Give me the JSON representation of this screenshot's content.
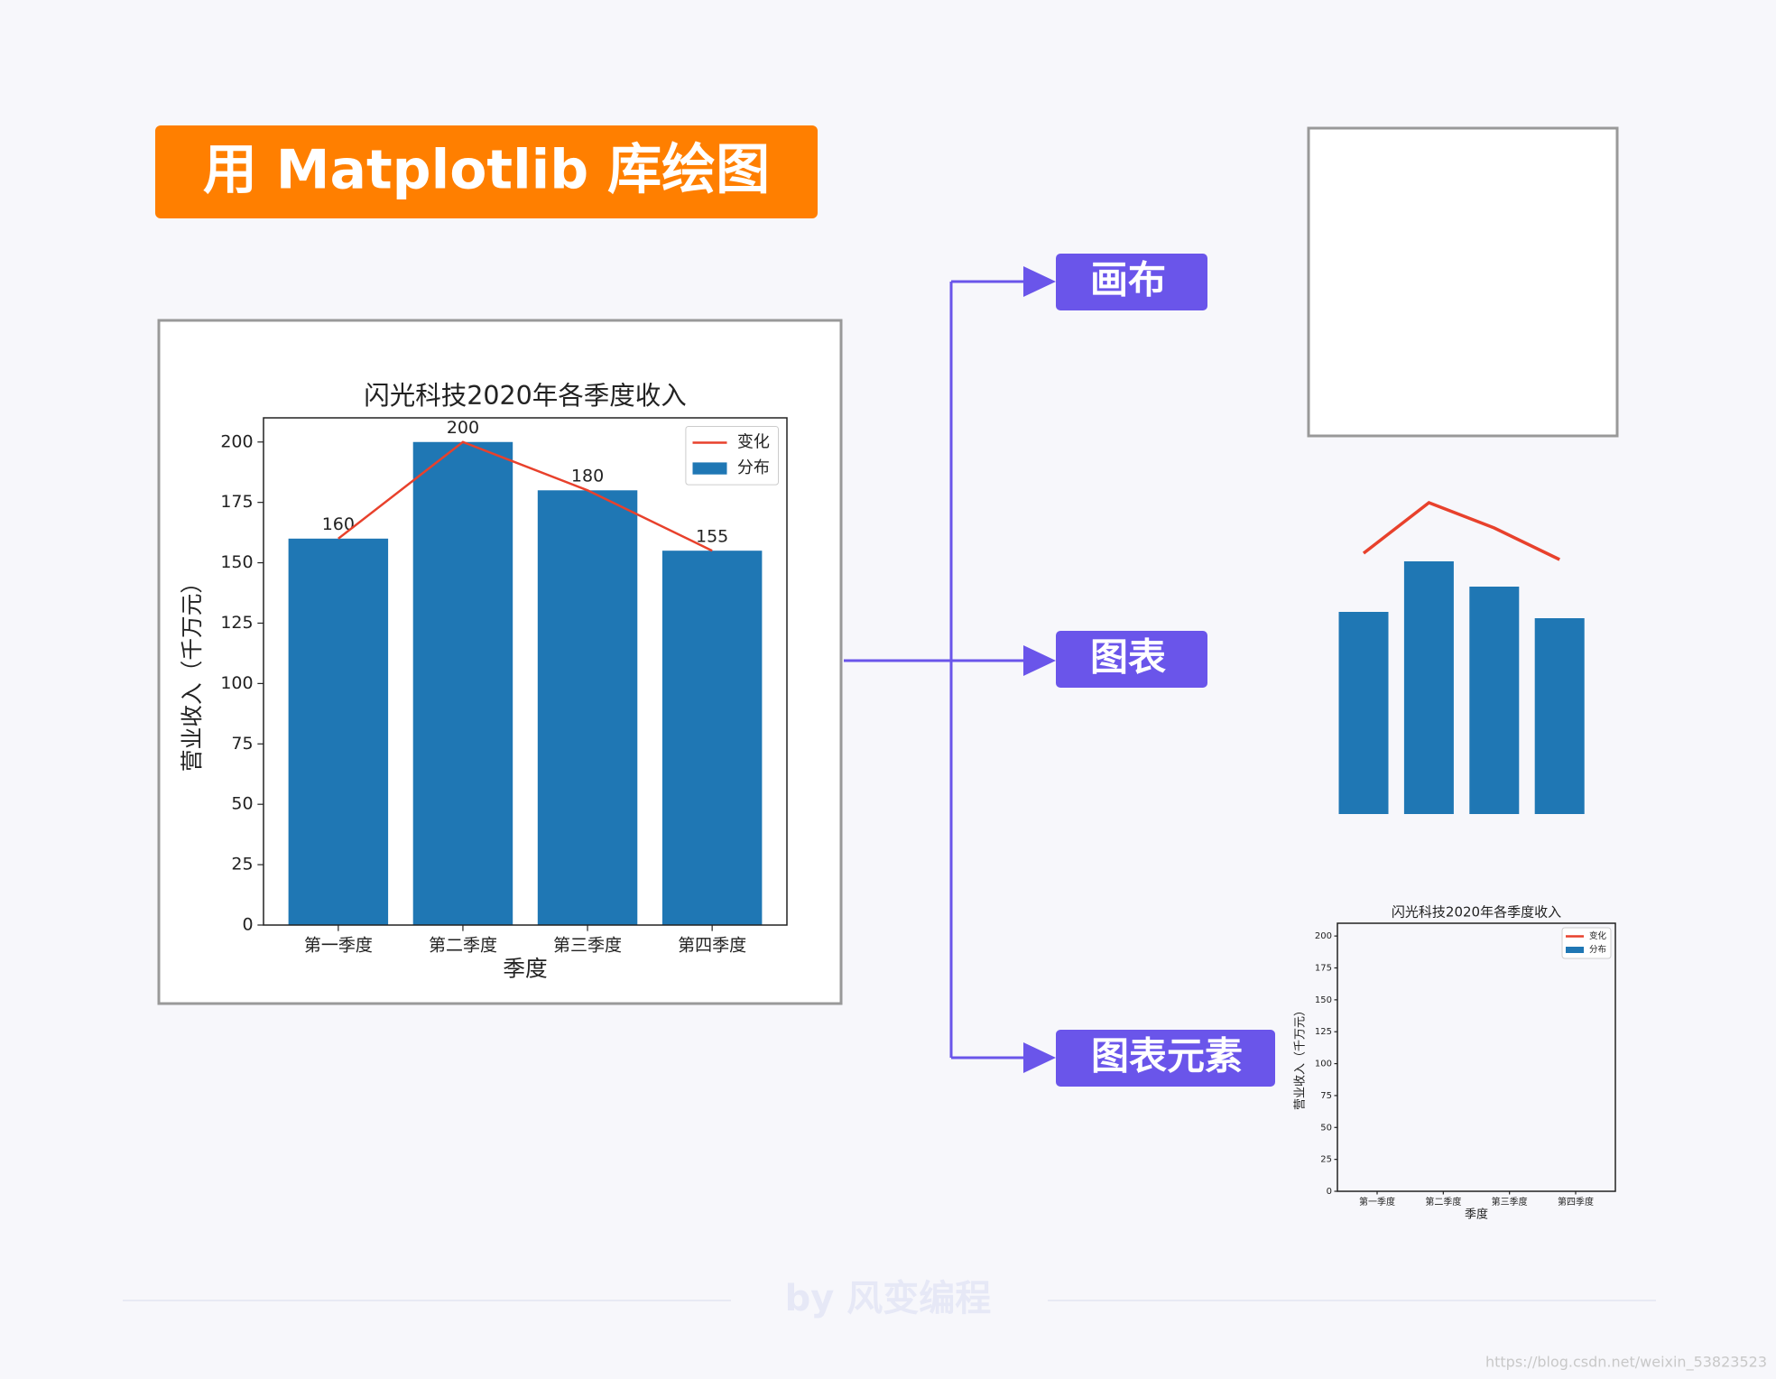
{
  "header": {
    "title": "用 Matplotlib 库绘图"
  },
  "branches": [
    "画布",
    "图表",
    "图表元素"
  ],
  "chart_data": {
    "type": "combo",
    "title": "闪光科技2020年各季度收入",
    "x_label": "季度",
    "y_label": "营业收入（千万元）",
    "categories": [
      "第一季度",
      "第二季度",
      "第三季度",
      "第四季度"
    ],
    "series": [
      {
        "name": "变化",
        "type": "line",
        "color": "#e8412c",
        "values": [
          160,
          200,
          180,
          155
        ]
      },
      {
        "name": "分布",
        "type": "bar",
        "color": "#1f77b4",
        "values": [
          160,
          200,
          180,
          155
        ]
      }
    ],
    "ylim": [
      0,
      210
    ],
    "yticks": [
      0,
      25,
      50,
      75,
      100,
      125,
      150,
      175,
      200
    ],
    "legend": "upper right",
    "grid": false
  },
  "watermark": "by 风变编程",
  "footer": "https://blog.csdn.net/weixin_53823523"
}
